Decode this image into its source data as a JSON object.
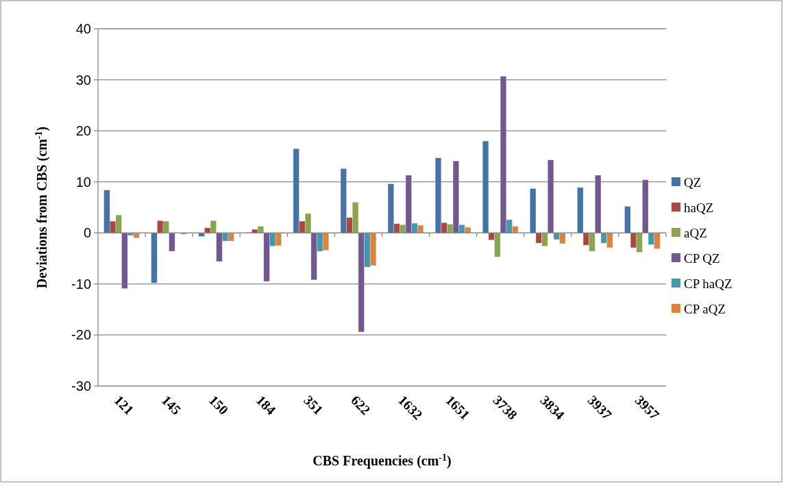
{
  "chart_data": {
    "type": "bar",
    "xlabel": "CBS Frequencies (cm$^{-1}$)",
    "ylabel": "Deviations from CBS (cm$^{-1}$)",
    "categories": [
      "121",
      "145",
      "150",
      "184",
      "351",
      "622",
      "1632",
      "1651",
      "3738",
      "3834",
      "3937",
      "3957"
    ],
    "series": [
      {
        "name": "QZ",
        "color": "#4572a7",
        "values": [
          8.4,
          -9.8,
          -0.7,
          0.1,
          16.5,
          12.6,
          9.6,
          14.7,
          18.0,
          8.7,
          8.9,
          5.2
        ]
      },
      {
        "name": "haQZ",
        "color": "#aa4643",
        "values": [
          2.3,
          2.4,
          1.0,
          0.7,
          2.3,
          3.0,
          1.8,
          2.0,
          -1.4,
          -2.0,
          -2.4,
          -2.9
        ]
      },
      {
        "name": "aQZ",
        "color": "#89a54e",
        "values": [
          3.5,
          2.3,
          2.4,
          1.3,
          3.8,
          6.0,
          1.6,
          1.7,
          -4.7,
          -2.6,
          -3.6,
          -3.8
        ]
      },
      {
        "name": "CP QZ",
        "color": "#71588f",
        "values": [
          -10.9,
          -3.6,
          -5.6,
          -9.5,
          -9.2,
          -19.4,
          11.3,
          14.1,
          30.7,
          14.3,
          11.3,
          10.4
        ]
      },
      {
        "name": "CP haQZ",
        "color": "#4198af",
        "values": [
          -0.5,
          0,
          -1.6,
          -2.6,
          -3.6,
          -6.7,
          1.9,
          1.6,
          2.6,
          -1.3,
          -2.0,
          -2.3
        ]
      },
      {
        "name": "CP aQZ",
        "color": "#db843d",
        "values": [
          -1.0,
          -0.3,
          -1.6,
          -2.5,
          -3.4,
          -6.4,
          1.5,
          1.1,
          1.3,
          -2.1,
          -2.9,
          -3.1
        ]
      }
    ],
    "ylim": [
      -30,
      40
    ],
    "yticks": [
      -30,
      -20,
      -10,
      0,
      10,
      20,
      30,
      40
    ],
    "grid": "y",
    "legend": "right"
  }
}
